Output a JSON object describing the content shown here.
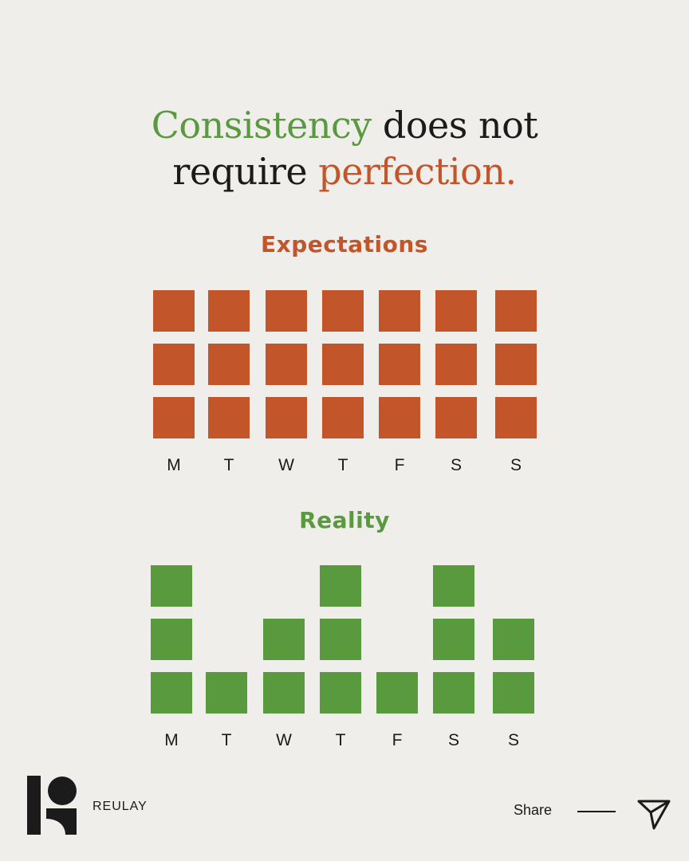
{
  "headline": {
    "part1": "Consistency",
    "part2": " does not",
    "part3": "require ",
    "part4": "perfection."
  },
  "colors": {
    "orange": "#c2552a",
    "green": "#5a9a3f",
    "text": "#1b1b1b",
    "background": "#efeeea"
  },
  "chart_data": [
    {
      "type": "bar",
      "title": "Expectations",
      "categories": [
        "M",
        "T",
        "W",
        "T",
        "F",
        "S",
        "S"
      ],
      "values": [
        3,
        3,
        3,
        3,
        3,
        3,
        3
      ],
      "ylim": [
        0,
        3
      ],
      "unit_style": "stacked-squares",
      "color": "#c2552a"
    },
    {
      "type": "bar",
      "title": "Reality",
      "categories": [
        "M",
        "T",
        "W",
        "T",
        "F",
        "S",
        "S"
      ],
      "values": [
        3,
        1,
        2,
        3,
        1,
        3,
        2
      ],
      "ylim": [
        0,
        3
      ],
      "unit_style": "stacked-squares",
      "color": "#5a9a3f"
    }
  ],
  "footer": {
    "brand": "REULAY",
    "share_label": "Share",
    "logo_icon": "reulay-logo-icon",
    "send_icon": "paper-plane-icon"
  }
}
